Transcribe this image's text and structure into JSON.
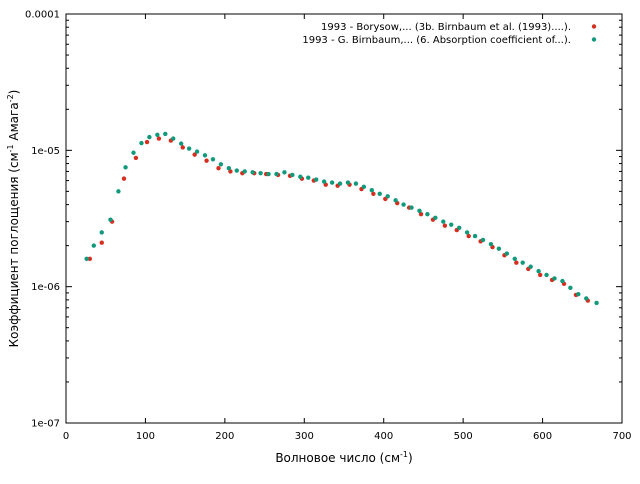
{
  "chart_data": {
    "type": "scatter",
    "title": "",
    "xlabel": "Волновое число (см",
    "xlabel_sup": "-1",
    "xlabel_end": ")",
    "ylabel": "Коэффициент поглощения (см",
    "ylabel_sup1": "-1",
    "ylabel_mid": " Амага",
    "ylabel_sup2": "-2",
    "ylabel_end": ")",
    "xlim": [
      0,
      700
    ],
    "ylim": [
      1e-07,
      0.0001
    ],
    "yscale": "log",
    "x_ticks": [
      0,
      100,
      200,
      300,
      400,
      500,
      600,
      700
    ],
    "x_tick_labels": [
      "0",
      "100",
      "200",
      "300",
      "400",
      "500",
      "600",
      "700"
    ],
    "y_ticks": [
      1e-07,
      1e-06,
      1e-05,
      0.0001
    ],
    "y_tick_labels": [
      "1e-07",
      "1e-06",
      "1e-05",
      "0.0001"
    ],
    "grid": false,
    "legend_position": "top-right",
    "series": [
      {
        "name": "1993 - Borysow,... (3b. Birnbaum et al. (1993)....).",
        "color": "#d62f1f",
        "points": [
          [
            30,
            1.6e-06
          ],
          [
            45,
            2.1e-06
          ],
          [
            58,
            3e-06
          ],
          [
            73,
            6.2e-06
          ],
          [
            88,
            8.8e-06
          ],
          [
            102,
            1.15e-05
          ],
          [
            117,
            1.22e-05
          ],
          [
            132,
            1.18e-05
          ],
          [
            147,
            1.05e-05
          ],
          [
            162,
            9.3e-06
          ],
          [
            177,
            8.4e-06
          ],
          [
            192,
            7.4e-06
          ],
          [
            207,
            7e-06
          ],
          [
            222,
            6.8e-06
          ],
          [
            237,
            6.8e-06
          ],
          [
            252,
            6.7e-06
          ],
          [
            267,
            6.6e-06
          ],
          [
            282,
            6.5e-06
          ],
          [
            297,
            6.2e-06
          ],
          [
            312,
            6e-06
          ],
          [
            327,
            5.6e-06
          ],
          [
            342,
            5.5e-06
          ],
          [
            357,
            5.6e-06
          ],
          [
            372,
            5.2e-06
          ],
          [
            387,
            4.8e-06
          ],
          [
            402,
            4.4e-06
          ],
          [
            417,
            4.1e-06
          ],
          [
            432,
            3.8e-06
          ],
          [
            447,
            3.4e-06
          ],
          [
            462,
            3.1e-06
          ],
          [
            477,
            2.8e-06
          ],
          [
            492,
            2.6e-06
          ],
          [
            507,
            2.35e-06
          ],
          [
            522,
            2.15e-06
          ],
          [
            537,
            1.95e-06
          ],
          [
            552,
            1.7e-06
          ],
          [
            567,
            1.5e-06
          ],
          [
            582,
            1.35e-06
          ],
          [
            597,
            1.22e-06
          ],
          [
            612,
            1.12e-06
          ],
          [
            627,
            1.05e-06
          ],
          [
            642,
            8.7e-07
          ],
          [
            657,
            7.9e-07
          ]
        ]
      },
      {
        "name": "1993 - G. Birnbaum,... (6. Absorption coefficient of...).",
        "color": "#10997a",
        "points": [
          [
            26,
            1.6e-06
          ],
          [
            35,
            2e-06
          ],
          [
            45,
            2.5e-06
          ],
          [
            56,
            3.1e-06
          ],
          [
            66,
            5e-06
          ],
          [
            75,
            7.5e-06
          ],
          [
            85,
            9.6e-06
          ],
          [
            95,
            1.13e-05
          ],
          [
            105,
            1.25e-05
          ],
          [
            115,
            1.3e-05
          ],
          [
            125,
            1.32e-05
          ],
          [
            135,
            1.22e-05
          ],
          [
            145,
            1.12e-05
          ],
          [
            155,
            1.03e-05
          ],
          [
            165,
            9.8e-06
          ],
          [
            175,
            9.2e-06
          ],
          [
            185,
            8.6e-06
          ],
          [
            195,
            7.9e-06
          ],
          [
            205,
            7.4e-06
          ],
          [
            215,
            7.1e-06
          ],
          [
            225,
            7e-06
          ],
          [
            235,
            6.9e-06
          ],
          [
            245,
            6.8e-06
          ],
          [
            255,
            6.7e-06
          ],
          [
            265,
            6.7e-06
          ],
          [
            275,
            6.9e-06
          ],
          [
            285,
            6.6e-06
          ],
          [
            295,
            6.4e-06
          ],
          [
            305,
            6.3e-06
          ],
          [
            315,
            6.1e-06
          ],
          [
            325,
            5.9e-06
          ],
          [
            335,
            5.8e-06
          ],
          [
            345,
            5.7e-06
          ],
          [
            355,
            5.8e-06
          ],
          [
            365,
            5.7e-06
          ],
          [
            375,
            5.4e-06
          ],
          [
            385,
            5.1e-06
          ],
          [
            395,
            4.8e-06
          ],
          [
            405,
            4.6e-06
          ],
          [
            415,
            4.3e-06
          ],
          [
            425,
            4e-06
          ],
          [
            435,
            3.8e-06
          ],
          [
            445,
            3.6e-06
          ],
          [
            455,
            3.4e-06
          ],
          [
            465,
            3.2e-06
          ],
          [
            475,
            3e-06
          ],
          [
            485,
            2.85e-06
          ],
          [
            495,
            2.7e-06
          ],
          [
            505,
            2.5e-06
          ],
          [
            515,
            2.35e-06
          ],
          [
            525,
            2.2e-06
          ],
          [
            535,
            2.05e-06
          ],
          [
            545,
            1.9e-06
          ],
          [
            555,
            1.75e-06
          ],
          [
            565,
            1.6e-06
          ],
          [
            575,
            1.5e-06
          ],
          [
            585,
            1.4e-06
          ],
          [
            595,
            1.3e-06
          ],
          [
            605,
            1.22e-06
          ],
          [
            615,
            1.15e-06
          ],
          [
            625,
            1.1e-06
          ],
          [
            635,
            9.8e-07
          ],
          [
            645,
            8.8e-07
          ],
          [
            655,
            8.2e-07
          ],
          [
            668,
            7.6e-07
          ]
        ]
      }
    ]
  }
}
